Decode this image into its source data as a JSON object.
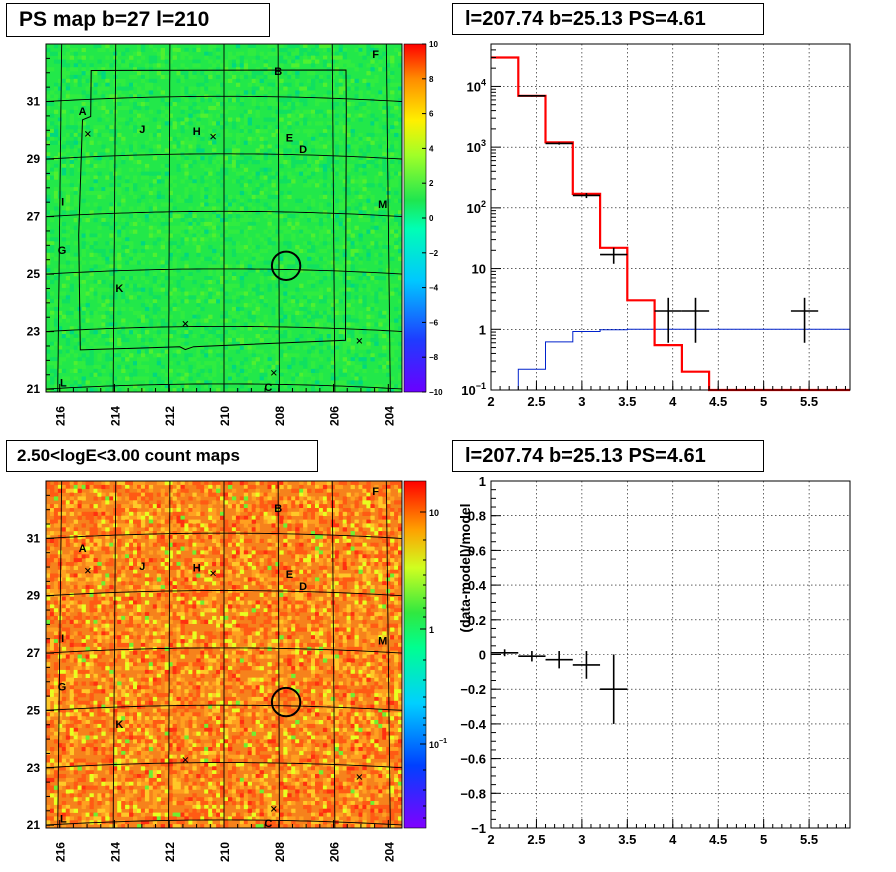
{
  "panels": {
    "top_left_title": "PS map b=27 l=210",
    "top_right_title": "l=207.74 b=25.13 PS=4.61",
    "bottom_left_title": "2.50<logE<3.00 count maps",
    "bottom_right_title": "l=207.74 b=25.13 PS=4.61"
  },
  "colors": {
    "map_fill": "#22e84a",
    "count_fill": "#f6821c",
    "model_red": "#ff0000",
    "model_blue": "#0022cc",
    "data_black": "#000000"
  },
  "chart_data": [
    {
      "type": "heatmap",
      "title": "PS map b=27 l=210",
      "x_ticks": [
        "216",
        "214",
        "212",
        "210",
        "208",
        "206",
        "204"
      ],
      "y_ticks": [
        "31",
        "29",
        "27",
        "25",
        "23",
        "21"
      ],
      "xlim": [
        216.5,
        203.5
      ],
      "ylim": [
        20.9,
        33.0
      ],
      "colorbar": {
        "min": -10,
        "max": 10,
        "ticks": [
          "10",
          "8",
          "6",
          "4",
          "2",
          "0",
          "−2",
          "−4",
          "−6",
          "−8",
          "−10"
        ]
      },
      "source_labels": [
        {
          "label": "A",
          "l": 215.2,
          "b": 30.6
        },
        {
          "label": "B",
          "l": 208.0,
          "b": 31.9
        },
        {
          "label": "F",
          "l": 204.4,
          "b": 32.6
        },
        {
          "label": "J",
          "l": 213.0,
          "b": 29.9
        },
        {
          "label": "H",
          "l": 211.0,
          "b": 29.8
        },
        {
          "label": "E",
          "l": 207.6,
          "b": 29.6
        },
        {
          "label": "D",
          "l": 207.1,
          "b": 29.2
        },
        {
          "label": "I",
          "l": 215.9,
          "b": 27.5
        },
        {
          "label": "M",
          "l": 204.2,
          "b": 27.4
        },
        {
          "label": "G",
          "l": 215.9,
          "b": 25.8
        },
        {
          "label": "K",
          "l": 213.8,
          "b": 24.4
        },
        {
          "label": "L",
          "l": 215.8,
          "b": 21.2
        },
        {
          "label": "C",
          "l": 208.4,
          "b": 20.9
        }
      ],
      "cross_markers": [
        {
          "l": 215.0,
          "b": 29.8
        },
        {
          "l": 210.4,
          "b": 29.6
        },
        {
          "l": 211.4,
          "b": 23.1
        },
        {
          "l": 205.1,
          "b": 22.6
        },
        {
          "l": 208.2,
          "b": 21.4
        }
      ],
      "circle": {
        "l": 207.74,
        "b": 25.13,
        "radius": 0.52
      }
    },
    {
      "type": "line",
      "title": "l=207.74 b=25.13 PS=4.61",
      "y_scale": "log",
      "xlim": [
        2.0,
        5.95
      ],
      "ylim": [
        0.1,
        50000
      ],
      "x_ticks": [
        "2",
        "2.5",
        "3",
        "3.5",
        "4",
        "4.5",
        "5",
        "5.5"
      ],
      "y_ticks": [
        {
          "label": "10",
          "exp": "−1",
          "value": 0.1
        },
        {
          "label": "1",
          "exp": "",
          "value": 1
        },
        {
          "label": "10",
          "exp": "",
          "value": 10
        },
        {
          "label": "10",
          "exp": "2",
          "value": 100
        },
        {
          "label": "10",
          "exp": "3",
          "value": 1000
        },
        {
          "label": "10",
          "exp": "4",
          "value": 10000
        }
      ],
      "grid": true,
      "bin_edges": [
        2.0,
        2.3,
        2.6,
        2.9,
        3.2,
        3.5,
        3.8,
        4.1,
        4.4,
        4.7,
        5.0,
        5.3,
        5.6,
        5.95
      ],
      "series": [
        {
          "values": [
            30000,
            7000,
            1200,
            170,
            22,
            3.0,
            0.55,
            0.2,
            0.1,
            0.1,
            0.1,
            0.1,
            0.1
          ]
        },
        {
          "values": [
            0.05,
            0.22,
            0.62,
            0.92,
            0.98,
            1.0,
            1.0,
            1.0,
            1.0,
            1.0,
            1.0,
            1.0,
            1.0
          ]
        }
      ],
      "points": [
        {
          "x": 2.45,
          "y": 7000,
          "xerr": 0.15,
          "ylo": 6800,
          "yhi": 7200
        },
        {
          "x": 2.75,
          "y": 1150,
          "xerr": 0.15,
          "ylo": 1100,
          "yhi": 1200
        },
        {
          "x": 3.05,
          "y": 160,
          "xerr": 0.15,
          "ylo": 145,
          "yhi": 175
        },
        {
          "x": 3.35,
          "y": 17,
          "xerr": 0.15,
          "ylo": 12,
          "yhi": 22
        },
        {
          "x": 3.95,
          "y": 2.0,
          "xerr": 0.15,
          "ylo": 0.6,
          "yhi": 3.3
        },
        {
          "x": 4.25,
          "y": 2.0,
          "xerr": 0.15,
          "ylo": 0.6,
          "yhi": 3.3
        },
        {
          "x": 5.45,
          "y": 2.0,
          "xerr": 0.15,
          "ylo": 0.6,
          "yhi": 3.3
        }
      ]
    },
    {
      "type": "heatmap",
      "title": "2.50<logE<3.00 count maps",
      "x_ticks": [
        "216",
        "214",
        "212",
        "210",
        "208",
        "206",
        "204"
      ],
      "y_ticks": [
        "31",
        "29",
        "27",
        "25",
        "23",
        "21"
      ],
      "colorbar": {
        "ticks": [
          {
            "label": "10",
            "exp": ""
          },
          {
            "label": "1",
            "exp": ""
          },
          {
            "label": "10",
            "exp": "−1"
          }
        ]
      },
      "circle": {
        "l": 207.74,
        "b": 25.13,
        "radius": 0.52
      }
    },
    {
      "type": "scatter",
      "title": "l=207.74 b=25.13 PS=4.61",
      "ylabel": "(data-model)/model",
      "xlim": [
        2.0,
        5.95
      ],
      "ylim": [
        -1.0,
        1.0
      ],
      "x_ticks": [
        "2",
        "2.5",
        "3",
        "3.5",
        "4",
        "4.5",
        "5",
        "5.5"
      ],
      "y_ticks": [
        "1",
        "0.8",
        "0.6",
        "0.4",
        "0.2",
        "0",
        "−0.2",
        "−0.4",
        "−0.6",
        "−0.8",
        "−1"
      ],
      "grid": true,
      "points": [
        {
          "x": 2.15,
          "y": 0.01,
          "xerr": 0.15,
          "yerr": 0.02
        },
        {
          "x": 2.45,
          "y": -0.01,
          "xerr": 0.15,
          "yerr": 0.03
        },
        {
          "x": 2.75,
          "y": -0.03,
          "xerr": 0.15,
          "yerr": 0.05
        },
        {
          "x": 3.05,
          "y": -0.06,
          "xerr": 0.15,
          "yerr": 0.08
        },
        {
          "x": 3.35,
          "y": -0.2,
          "xerr": 0.15,
          "yerr": 0.2
        }
      ]
    }
  ]
}
